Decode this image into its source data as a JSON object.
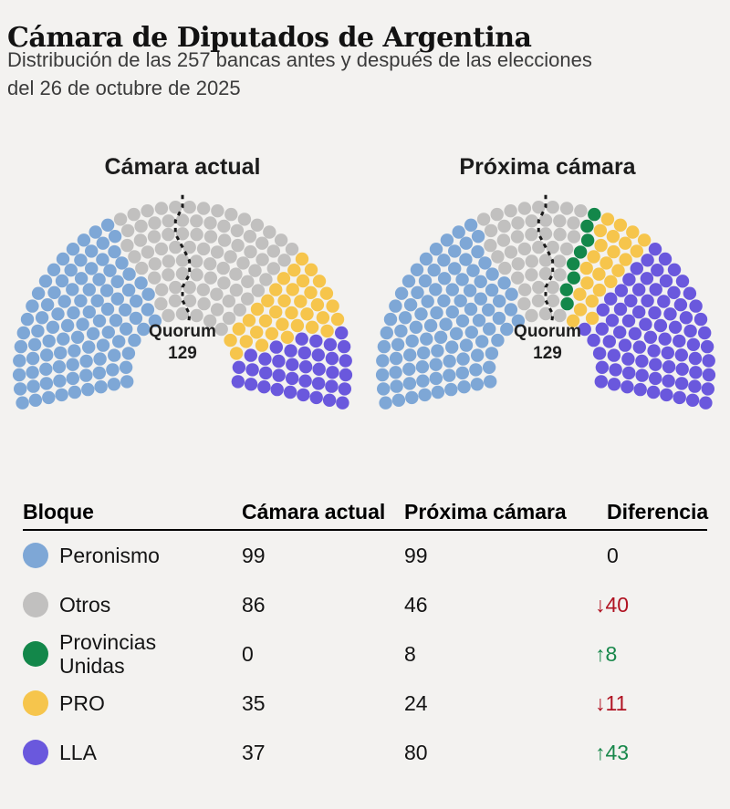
{
  "page_bg": "#f3f2f0",
  "header": {
    "title": "Cámara de Diputados de Argentina",
    "subtitle_line1": "Distribución de las 257 bancas antes y después de las elecciones",
    "subtitle_line2": "del 26 de octubre de 2025"
  },
  "charts": {
    "left_title": "Cámara actual",
    "right_title": "Próxima cámara",
    "quorum_label": "Quorum",
    "quorum_value": "129"
  },
  "table": {
    "headers": {
      "bloque": "Bloque",
      "current": "Cámara actual",
      "next": "Próxima cámara",
      "diff": "Diferencia"
    }
  },
  "parties": [
    {
      "name": "Peronismo",
      "color": "#7ea7d6",
      "current": 99,
      "next": 99,
      "diff_value": "0",
      "diff_dir": "none"
    },
    {
      "name": "Otros",
      "color": "#c1c0bf",
      "current": 86,
      "next": 46,
      "diff_value": "40",
      "diff_dir": "down"
    },
    {
      "name": "Provincias Unidas",
      "color": "#13874a",
      "current": 0,
      "next": 8,
      "diff_value": "8",
      "diff_dir": "up"
    },
    {
      "name": "PRO",
      "color": "#f6c54c",
      "current": 35,
      "next": 24,
      "diff_value": "11",
      "diff_dir": "down"
    },
    {
      "name": "LLA",
      "color": "#6a58dd",
      "current": 37,
      "next": 80,
      "diff_value": "43",
      "diff_dir": "up"
    }
  ],
  "icons": {
    "up": "↑",
    "down": "↓"
  },
  "colors": {
    "up": "#17874a",
    "down": "#b01322",
    "none": "#141414",
    "quorum_line": "#1a1a1a"
  },
  "chart_data": {
    "type": "parliament",
    "title": "Cámara de Diputados de Argentina",
    "subtitle": "Distribución de las 257 bancas antes y después de las elecciones del 26 de octubre de 2025",
    "total_seats": 257,
    "quorum": 129,
    "charts": [
      {
        "title": "Cámara actual",
        "series": [
          {
            "name": "Peronismo",
            "seats": 99
          },
          {
            "name": "Otros",
            "seats": 86
          },
          {
            "name": "Provincias Unidas",
            "seats": 0
          },
          {
            "name": "PRO",
            "seats": 35
          },
          {
            "name": "LLA",
            "seats": 37
          }
        ]
      },
      {
        "title": "Próxima cámara",
        "series": [
          {
            "name": "Peronismo",
            "seats": 99
          },
          {
            "name": "Otros",
            "seats": 46
          },
          {
            "name": "Provincias Unidas",
            "seats": 8
          },
          {
            "name": "PRO",
            "seats": 24
          },
          {
            "name": "LLA",
            "seats": 80
          }
        ]
      }
    ],
    "table": {
      "columns": [
        "Bloque",
        "Cámara actual",
        "Próxima cámara",
        "Diferencia"
      ],
      "rows": [
        [
          "Peronismo",
          99,
          99,
          "0"
        ],
        [
          "Otros",
          86,
          46,
          "-40"
        ],
        [
          "Provincias Unidas",
          0,
          8,
          "+8"
        ],
        [
          "PRO",
          35,
          24,
          "-11"
        ],
        [
          "LLA",
          37,
          80,
          "+43"
        ]
      ]
    }
  }
}
